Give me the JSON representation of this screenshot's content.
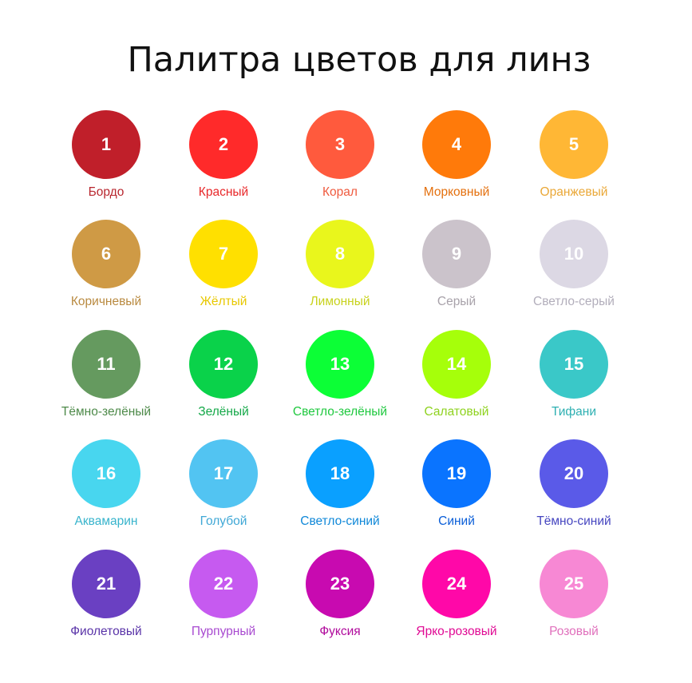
{
  "title": "Палитра цветов для линз",
  "colors": [
    {
      "number": "1",
      "name": "Бордо",
      "color": "#c01f2a",
      "label_color": "#b8262e"
    },
    {
      "number": "2",
      "name": "Красный",
      "color": "#ff2a2a",
      "label_color": "#e8282a"
    },
    {
      "number": "3",
      "name": "Корал",
      "color": "#ff5a3d",
      "label_color": "#ef5a3e"
    },
    {
      "number": "4",
      "name": "Морковный",
      "color": "#ff7a0a",
      "label_color": "#e4700e"
    },
    {
      "number": "5",
      "name": "Оранжевый",
      "color": "#ffb735",
      "label_color": "#eaa838"
    },
    {
      "number": "6",
      "name": "Коричневый",
      "color": "#cf9a45",
      "label_color": "#b98a40"
    },
    {
      "number": "7",
      "name": "Жёлтый",
      "color": "#ffe000",
      "label_color": "#e8c800"
    },
    {
      "number": "8",
      "name": "Лимонный",
      "color": "#e9f61c",
      "label_color": "#c8d21c"
    },
    {
      "number": "9",
      "name": "Серый",
      "color": "#cbc3cb",
      "label_color": "#a8a2aa"
    },
    {
      "number": "10",
      "name": "Светло-серый",
      "color": "#dcd8e4",
      "label_color": "#b2aebb"
    },
    {
      "number": "11",
      "name": "Тёмно-зелёный",
      "color": "#659a5f",
      "label_color": "#4e8a4a"
    },
    {
      "number": "12",
      "name": "Зелёный",
      "color": "#0ad24a",
      "label_color": "#14a848"
    },
    {
      "number": "13",
      "name": "Светло-зелёный",
      "color": "#0cff36",
      "label_color": "#1ec83e"
    },
    {
      "number": "14",
      "name": "Салатовый",
      "color": "#a6ff0a",
      "label_color": "#8ed21e"
    },
    {
      "number": "15",
      "name": "Тифани",
      "color": "#3ac8c8",
      "label_color": "#2eb0b2"
    },
    {
      "number": "16",
      "name": "Аквамарин",
      "color": "#48d6ef",
      "label_color": "#38b4cc"
    },
    {
      "number": "17",
      "name": "Голубой",
      "color": "#52c4f2",
      "label_color": "#40a8d6"
    },
    {
      "number": "18",
      "name": "Светло-синий",
      "color": "#0aa0ff",
      "label_color": "#1088d8"
    },
    {
      "number": "19",
      "name": "Синий",
      "color": "#0a74ff",
      "label_color": "#0a5ed8"
    },
    {
      "number": "20",
      "name": "Тёмно-синий",
      "color": "#5a5ae8",
      "label_color": "#4646c0"
    },
    {
      "number": "21",
      "name": "Фиолетовый",
      "color": "#6a40c2",
      "label_color": "#5a34a8"
    },
    {
      "number": "22",
      "name": "Пурпурный",
      "color": "#c65af0",
      "label_color": "#a84ad0"
    },
    {
      "number": "23",
      "name": "Фуксия",
      "color": "#c80ab0",
      "label_color": "#b00a9c"
    },
    {
      "number": "24",
      "name": "Ярко-розовый",
      "color": "#ff08a8",
      "label_color": "#e00a94"
    },
    {
      "number": "25",
      "name": "Розовый",
      "color": "#f788d4",
      "label_color": "#e070bc"
    }
  ]
}
